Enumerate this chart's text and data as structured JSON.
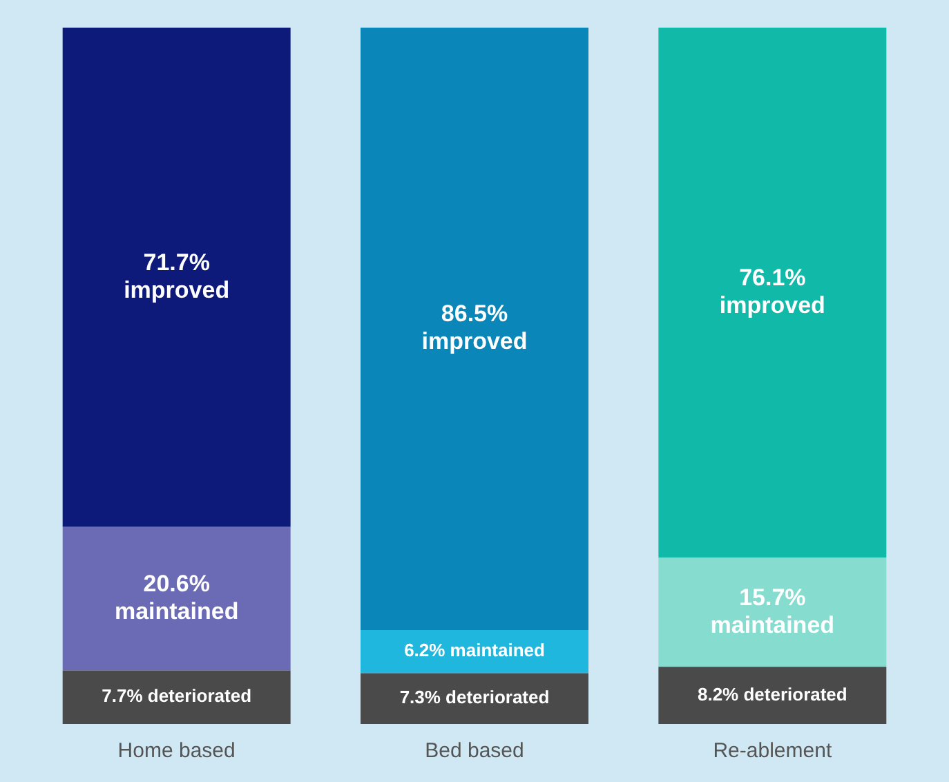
{
  "chart_data": {
    "type": "bar",
    "stacked": true,
    "legend": false,
    "grid": false,
    "tick_labels": "x",
    "categories": [
      "Home based",
      "Bed based",
      "Re-ablement"
    ],
    "series": [
      {
        "colors": [
          "#4a4a4a",
          "#4a4a4a",
          "#4a4a4a"
        ],
        "values": [
          7.7,
          7.3,
          8.2
        ],
        "value_labels": [
          "7.7% deteriorated",
          "7.3% deteriorated",
          "8.2% deteriorated"
        ]
      },
      {
        "colors": [
          "#6b6bb5",
          "#1fb7dd",
          "#86dccf"
        ],
        "values": [
          20.6,
          6.2,
          15.7
        ],
        "value_labels": [
          "20.6% maintained",
          "6.2% maintained",
          "15.7% maintained"
        ]
      },
      {
        "colors": [
          "#0d1a7a",
          "#0a86b8",
          "#11b9a8"
        ],
        "values": [
          71.7,
          86.5,
          76.1
        ],
        "value_labels": [
          "71.7% improved",
          "86.5% improved",
          "76.1% improved"
        ]
      }
    ]
  }
}
